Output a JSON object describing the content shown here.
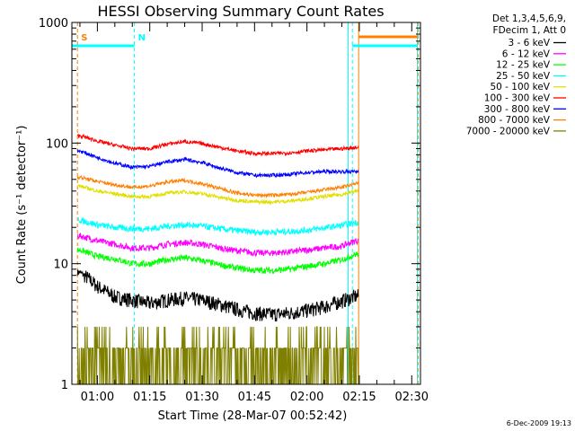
{
  "chart_data": {
    "type": "line",
    "title": "HESSI Observing Summary Count Rates",
    "xlabel": "Start Time (28-Mar-07 00:52:42)",
    "ylabel": "Count Rate (s⁻¹ detector⁻¹)",
    "yscale": "log",
    "ylim": [
      1,
      1000
    ],
    "xlim_minutes": [
      52.7,
      152.5
    ],
    "x_ticks": [
      "01:00",
      "01:15",
      "01:30",
      "01:45",
      "02:00",
      "02:15",
      "02:30"
    ],
    "x_tick_minutes": [
      60,
      75,
      90,
      105,
      120,
      135,
      150
    ],
    "y_ticks": [
      "1",
      "10",
      "100",
      "1000"
    ],
    "y_tick_values": [
      1,
      10,
      100,
      1000
    ],
    "legend_header": [
      "Det 1,3,4,5,6,9,",
      "FDecim 1, Att 0"
    ],
    "legend_position": "outside-right",
    "footer": "6-Dec-2009 19:13",
    "markers": {
      "S": {
        "label": "S",
        "x_minutes": 54.3,
        "color": "#ff8000"
      },
      "N": {
        "label": "N",
        "x_minutes": 70.6,
        "color": "#00ffff"
      }
    },
    "vertical_lines": [
      {
        "x_minutes": 52.7,
        "color": "#00ffff",
        "style": "solid"
      },
      {
        "x_minutes": 54.3,
        "color": "#ff8000",
        "style": "dashed"
      },
      {
        "x_minutes": 70.6,
        "color": "#00ffff",
        "style": "dashed"
      },
      {
        "x_minutes": 131.8,
        "color": "#00ffff",
        "style": "solid"
      },
      {
        "x_minutes": 133.0,
        "color": "#00ffff",
        "style": "dashed"
      },
      {
        "x_minutes": 134.8,
        "color": "#ff8000",
        "style": "solid"
      },
      {
        "x_minutes": 151.6,
        "color": "#00ffff",
        "style": "solid"
      },
      {
        "x_minutes": 151.8,
        "color": "#ff8000",
        "style": "dashed"
      }
    ],
    "bars": [
      {
        "from": 52.7,
        "to": 70.6,
        "value": 640,
        "color": "#00ffff"
      },
      {
        "from": 133.0,
        "to": 151.6,
        "value": 640,
        "color": "#00ffff"
      },
      {
        "from": 134.8,
        "to": 151.6,
        "value": 760,
        "color": "#ff8000"
      }
    ],
    "data_range_minutes": [
      54.3,
      134.8
    ],
    "x": [
      55,
      60,
      65,
      70,
      75,
      80,
      85,
      90,
      95,
      100,
      105,
      110,
      115,
      120,
      125,
      130,
      134
    ],
    "series": [
      {
        "name": "3 - 6 keV",
        "color": "#000000",
        "values": [
          8.5,
          6.5,
          5.3,
          5.0,
          4.7,
          5.0,
          5.2,
          5.0,
          4.6,
          4.2,
          3.9,
          3.8,
          3.9,
          4.1,
          4.4,
          4.9,
          5.4
        ]
      },
      {
        "name": "6 - 12 keV",
        "color": "#ff00ff",
        "values": [
          17,
          15.5,
          14.5,
          13.5,
          13.5,
          14.5,
          15,
          14.5,
          13.5,
          12.8,
          12.3,
          12.3,
          12.5,
          13,
          13.5,
          14,
          15.5
        ]
      },
      {
        "name": "12 - 25 keV",
        "color": "#00ff00",
        "values": [
          13,
          11.5,
          11,
          10,
          10,
          10.8,
          11.2,
          10.6,
          9.8,
          9.2,
          8.8,
          8.8,
          9.0,
          9.5,
          10,
          10.8,
          12
        ]
      },
      {
        "name": "25 - 50 keV",
        "color": "#00ffff",
        "values": [
          23,
          21,
          20,
          19.5,
          19.5,
          20.5,
          21,
          20.5,
          19.5,
          18.8,
          18.3,
          18.3,
          18.5,
          19,
          19.8,
          20.8,
          22
        ]
      },
      {
        "name": "50 - 100 keV",
        "color": "#e0e000",
        "values": [
          44,
          40,
          38,
          36,
          36,
          38.5,
          39.5,
          38,
          35.5,
          33.5,
          32.5,
          32.5,
          33,
          34.5,
          36,
          37.5,
          40
        ]
      },
      {
        "name": "100 - 300 keV",
        "color": "#ff0000",
        "values": [
          115,
          104,
          96,
          90,
          90,
          98,
          103,
          99,
          92,
          86,
          82,
          82,
          83,
          86,
          88,
          90,
          92
        ]
      },
      {
        "name": "300 - 800 keV",
        "color": "#0000ff",
        "values": [
          86,
          76,
          68,
          63,
          64,
          70,
          73,
          69,
          62,
          57,
          54,
          54,
          55,
          57,
          58,
          58,
          58
        ]
      },
      {
        "name": "800 - 7000 keV",
        "color": "#ff8000",
        "values": [
          52,
          48,
          45,
          43,
          44,
          47.5,
          49,
          46,
          42,
          38.5,
          37,
          37,
          37.5,
          39,
          41,
          43,
          46
        ]
      },
      {
        "name": "7000 - 20000 keV",
        "color": "#808000",
        "values": [
          1.5,
          1.6,
          1.5,
          1.55,
          1.45,
          1.45,
          1.9,
          1.7,
          1.5,
          1.4,
          1.5,
          1.6,
          1.5,
          1.7,
          1.8,
          2.0,
          2.0
        ]
      }
    ]
  }
}
